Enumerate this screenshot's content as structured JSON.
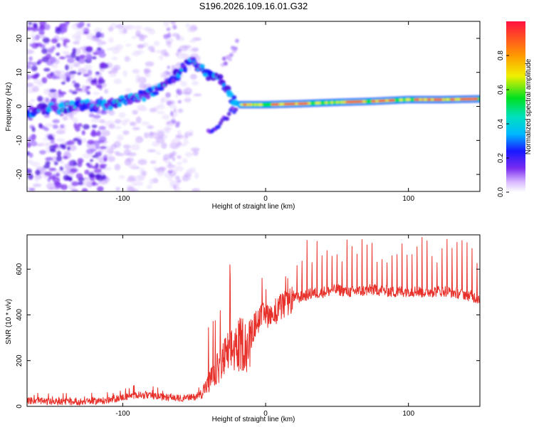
{
  "title": "S196.2026.109.16.01.G32",
  "colors": {
    "line": "#e8302a",
    "frame": "#000000",
    "ridge_low": "#7a2cf0",
    "ridge_high": "#ff2030"
  },
  "chart_data": [
    {
      "type": "heatmap",
      "xlabel": "Height of straight line (km)",
      "ylabel": "Frequency (Hz)",
      "xlim": [
        -167,
        150
      ],
      "ylim": [
        -25,
        25
      ],
      "xticks": [
        -100,
        0,
        100
      ],
      "xtick_labels": [
        "-100",
        "0",
        "100"
      ],
      "yticks": [
        -20,
        -10,
        0,
        10,
        20
      ],
      "ytick_labels": [
        "-20",
        "-10",
        "0",
        "10",
        "20"
      ],
      "ridge": [
        {
          "x": -165,
          "y": -1.5
        },
        {
          "x": -150,
          "y": -0.5
        },
        {
          "x": -130,
          "y": 0.2
        },
        {
          "x": -110,
          "y": 0.5
        },
        {
          "x": -95,
          "y": 2
        },
        {
          "x": -80,
          "y": 4
        },
        {
          "x": -70,
          "y": 7
        },
        {
          "x": -60,
          "y": 10
        },
        {
          "x": -52,
          "y": 14
        },
        {
          "x": -40,
          "y": 9
        },
        {
          "x": -32,
          "y": 8
        },
        {
          "x": -25,
          "y": 3
        },
        {
          "x": -20,
          "y": 0.5
        },
        {
          "x": 0,
          "y": 0.5
        },
        {
          "x": 25,
          "y": 0.8
        },
        {
          "x": 50,
          "y": 1.2
        },
        {
          "x": 75,
          "y": 1.5
        },
        {
          "x": 100,
          "y": 2
        },
        {
          "x": 125,
          "y": 2
        },
        {
          "x": 148,
          "y": 2.2
        }
      ],
      "colorbar": {
        "label": "Normalized spectral amplitude",
        "range": [
          0,
          1
        ],
        "ticks": [
          0.0,
          0.2,
          0.4,
          0.6,
          0.8
        ],
        "tick_labels": [
          "0.0",
          "0.2",
          "0.4",
          "0.6",
          "0.8"
        ]
      }
    },
    {
      "type": "line",
      "xlabel": "Height of straight line (km)",
      "ylabel": "SNR (10 * v/v)",
      "xlim": [
        -167,
        150
      ],
      "ylim": [
        0,
        750
      ],
      "xticks": [
        -100,
        0,
        100
      ],
      "xtick_labels": [
        "-100",
        "0",
        "100"
      ],
      "yticks": [
        0,
        200,
        400,
        600
      ],
      "ytick_labels": [
        "0",
        "200",
        "400",
        "600"
      ],
      "series": [
        {
          "name": "SNR",
          "x": [
            -167,
            -150,
            -130,
            -110,
            -100,
            -90,
            -80,
            -70,
            -60,
            -50,
            -45,
            -40,
            -35,
            -30,
            -25,
            -20,
            -15,
            -12,
            -8,
            -5,
            0,
            5,
            10,
            15,
            20,
            25,
            30,
            40,
            50,
            60,
            75,
            90,
            100,
            110,
            125,
            140,
            150
          ],
          "y": [
            25,
            20,
            20,
            25,
            40,
            50,
            45,
            40,
            35,
            40,
            60,
            100,
            150,
            200,
            240,
            260,
            280,
            250,
            350,
            380,
            400,
            410,
            430,
            450,
            470,
            480,
            490,
            500,
            510,
            500,
            510,
            500,
            505,
            500,
            505,
            490,
            470
          ]
        }
      ]
    }
  ]
}
